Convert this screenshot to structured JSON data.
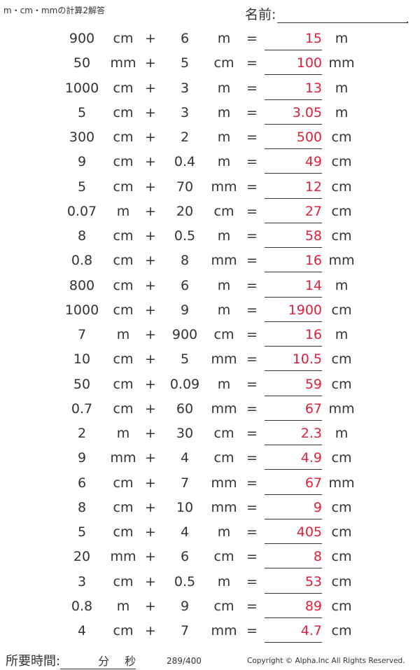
{
  "title": "m・cm・mmの計算2解答",
  "name_label": "名前:",
  "problems": [
    {
      "a": "900",
      "u1": "cm",
      "op": "+",
      "b": "6",
      "u2": "m",
      "eq": "=",
      "ans": "15",
      "u3": "m"
    },
    {
      "a": "50",
      "u1": "mm",
      "op": "+",
      "b": "5",
      "u2": "cm",
      "eq": "=",
      "ans": "100",
      "u3": "mm"
    },
    {
      "a": "1000",
      "u1": "cm",
      "op": "+",
      "b": "3",
      "u2": "m",
      "eq": "=",
      "ans": "13",
      "u3": "m"
    },
    {
      "a": "5",
      "u1": "cm",
      "op": "+",
      "b": "3",
      "u2": "m",
      "eq": "=",
      "ans": "3.05",
      "u3": "m"
    },
    {
      "a": "300",
      "u1": "cm",
      "op": "+",
      "b": "2",
      "u2": "m",
      "eq": "=",
      "ans": "500",
      "u3": "cm"
    },
    {
      "a": "9",
      "u1": "cm",
      "op": "+",
      "b": "0.4",
      "u2": "m",
      "eq": "=",
      "ans": "49",
      "u3": "cm"
    },
    {
      "a": "5",
      "u1": "cm",
      "op": "+",
      "b": "70",
      "u2": "mm",
      "eq": "=",
      "ans": "12",
      "u3": "cm"
    },
    {
      "a": "0.07",
      "u1": "m",
      "op": "+",
      "b": "20",
      "u2": "cm",
      "eq": "=",
      "ans": "27",
      "u3": "cm"
    },
    {
      "a": "8",
      "u1": "cm",
      "op": "+",
      "b": "0.5",
      "u2": "m",
      "eq": "=",
      "ans": "58",
      "u3": "cm"
    },
    {
      "a": "0.8",
      "u1": "cm",
      "op": "+",
      "b": "8",
      "u2": "mm",
      "eq": "=",
      "ans": "16",
      "u3": "mm"
    },
    {
      "a": "800",
      "u1": "cm",
      "op": "+",
      "b": "6",
      "u2": "m",
      "eq": "=",
      "ans": "14",
      "u3": "m"
    },
    {
      "a": "1000",
      "u1": "cm",
      "op": "+",
      "b": "9",
      "u2": "m",
      "eq": "=",
      "ans": "1900",
      "u3": "cm"
    },
    {
      "a": "7",
      "u1": "m",
      "op": "+",
      "b": "900",
      "u2": "cm",
      "eq": "=",
      "ans": "16",
      "u3": "m"
    },
    {
      "a": "10",
      "u1": "cm",
      "op": "+",
      "b": "5",
      "u2": "mm",
      "eq": "=",
      "ans": "10.5",
      "u3": "cm"
    },
    {
      "a": "50",
      "u1": "cm",
      "op": "+",
      "b": "0.09",
      "u2": "m",
      "eq": "=",
      "ans": "59",
      "u3": "cm"
    },
    {
      "a": "0.7",
      "u1": "cm",
      "op": "+",
      "b": "60",
      "u2": "mm",
      "eq": "=",
      "ans": "67",
      "u3": "mm"
    },
    {
      "a": "2",
      "u1": "m",
      "op": "+",
      "b": "30",
      "u2": "cm",
      "eq": "=",
      "ans": "2.3",
      "u3": "m"
    },
    {
      "a": "9",
      "u1": "mm",
      "op": "+",
      "b": "4",
      "u2": "cm",
      "eq": "=",
      "ans": "4.9",
      "u3": "cm"
    },
    {
      "a": "6",
      "u1": "cm",
      "op": "+",
      "b": "7",
      "u2": "mm",
      "eq": "=",
      "ans": "67",
      "u3": "mm"
    },
    {
      "a": "8",
      "u1": "cm",
      "op": "+",
      "b": "10",
      "u2": "mm",
      "eq": "=",
      "ans": "9",
      "u3": "cm"
    },
    {
      "a": "5",
      "u1": "cm",
      "op": "+",
      "b": "4",
      "u2": "m",
      "eq": "=",
      "ans": "405",
      "u3": "cm"
    },
    {
      "a": "20",
      "u1": "mm",
      "op": "+",
      "b": "6",
      "u2": "cm",
      "eq": "=",
      "ans": "8",
      "u3": "cm"
    },
    {
      "a": "3",
      "u1": "cm",
      "op": "+",
      "b": "0.5",
      "u2": "m",
      "eq": "=",
      "ans": "53",
      "u3": "cm"
    },
    {
      "a": "0.8",
      "u1": "m",
      "op": "+",
      "b": "9",
      "u2": "cm",
      "eq": "=",
      "ans": "89",
      "u3": "cm"
    },
    {
      "a": "4",
      "u1": "cm",
      "op": "+",
      "b": "7",
      "u2": "mm",
      "eq": "=",
      "ans": "4.7",
      "u3": "cm"
    }
  ],
  "footer": {
    "time_label": "所要時間:",
    "minutes_label": "分",
    "seconds_label": "秒",
    "page": "289/400",
    "copyright": "Copyright © Alpha.Inc All Rights Reserved."
  },
  "colors": {
    "answer": "#e0203c",
    "text": "#333333"
  }
}
